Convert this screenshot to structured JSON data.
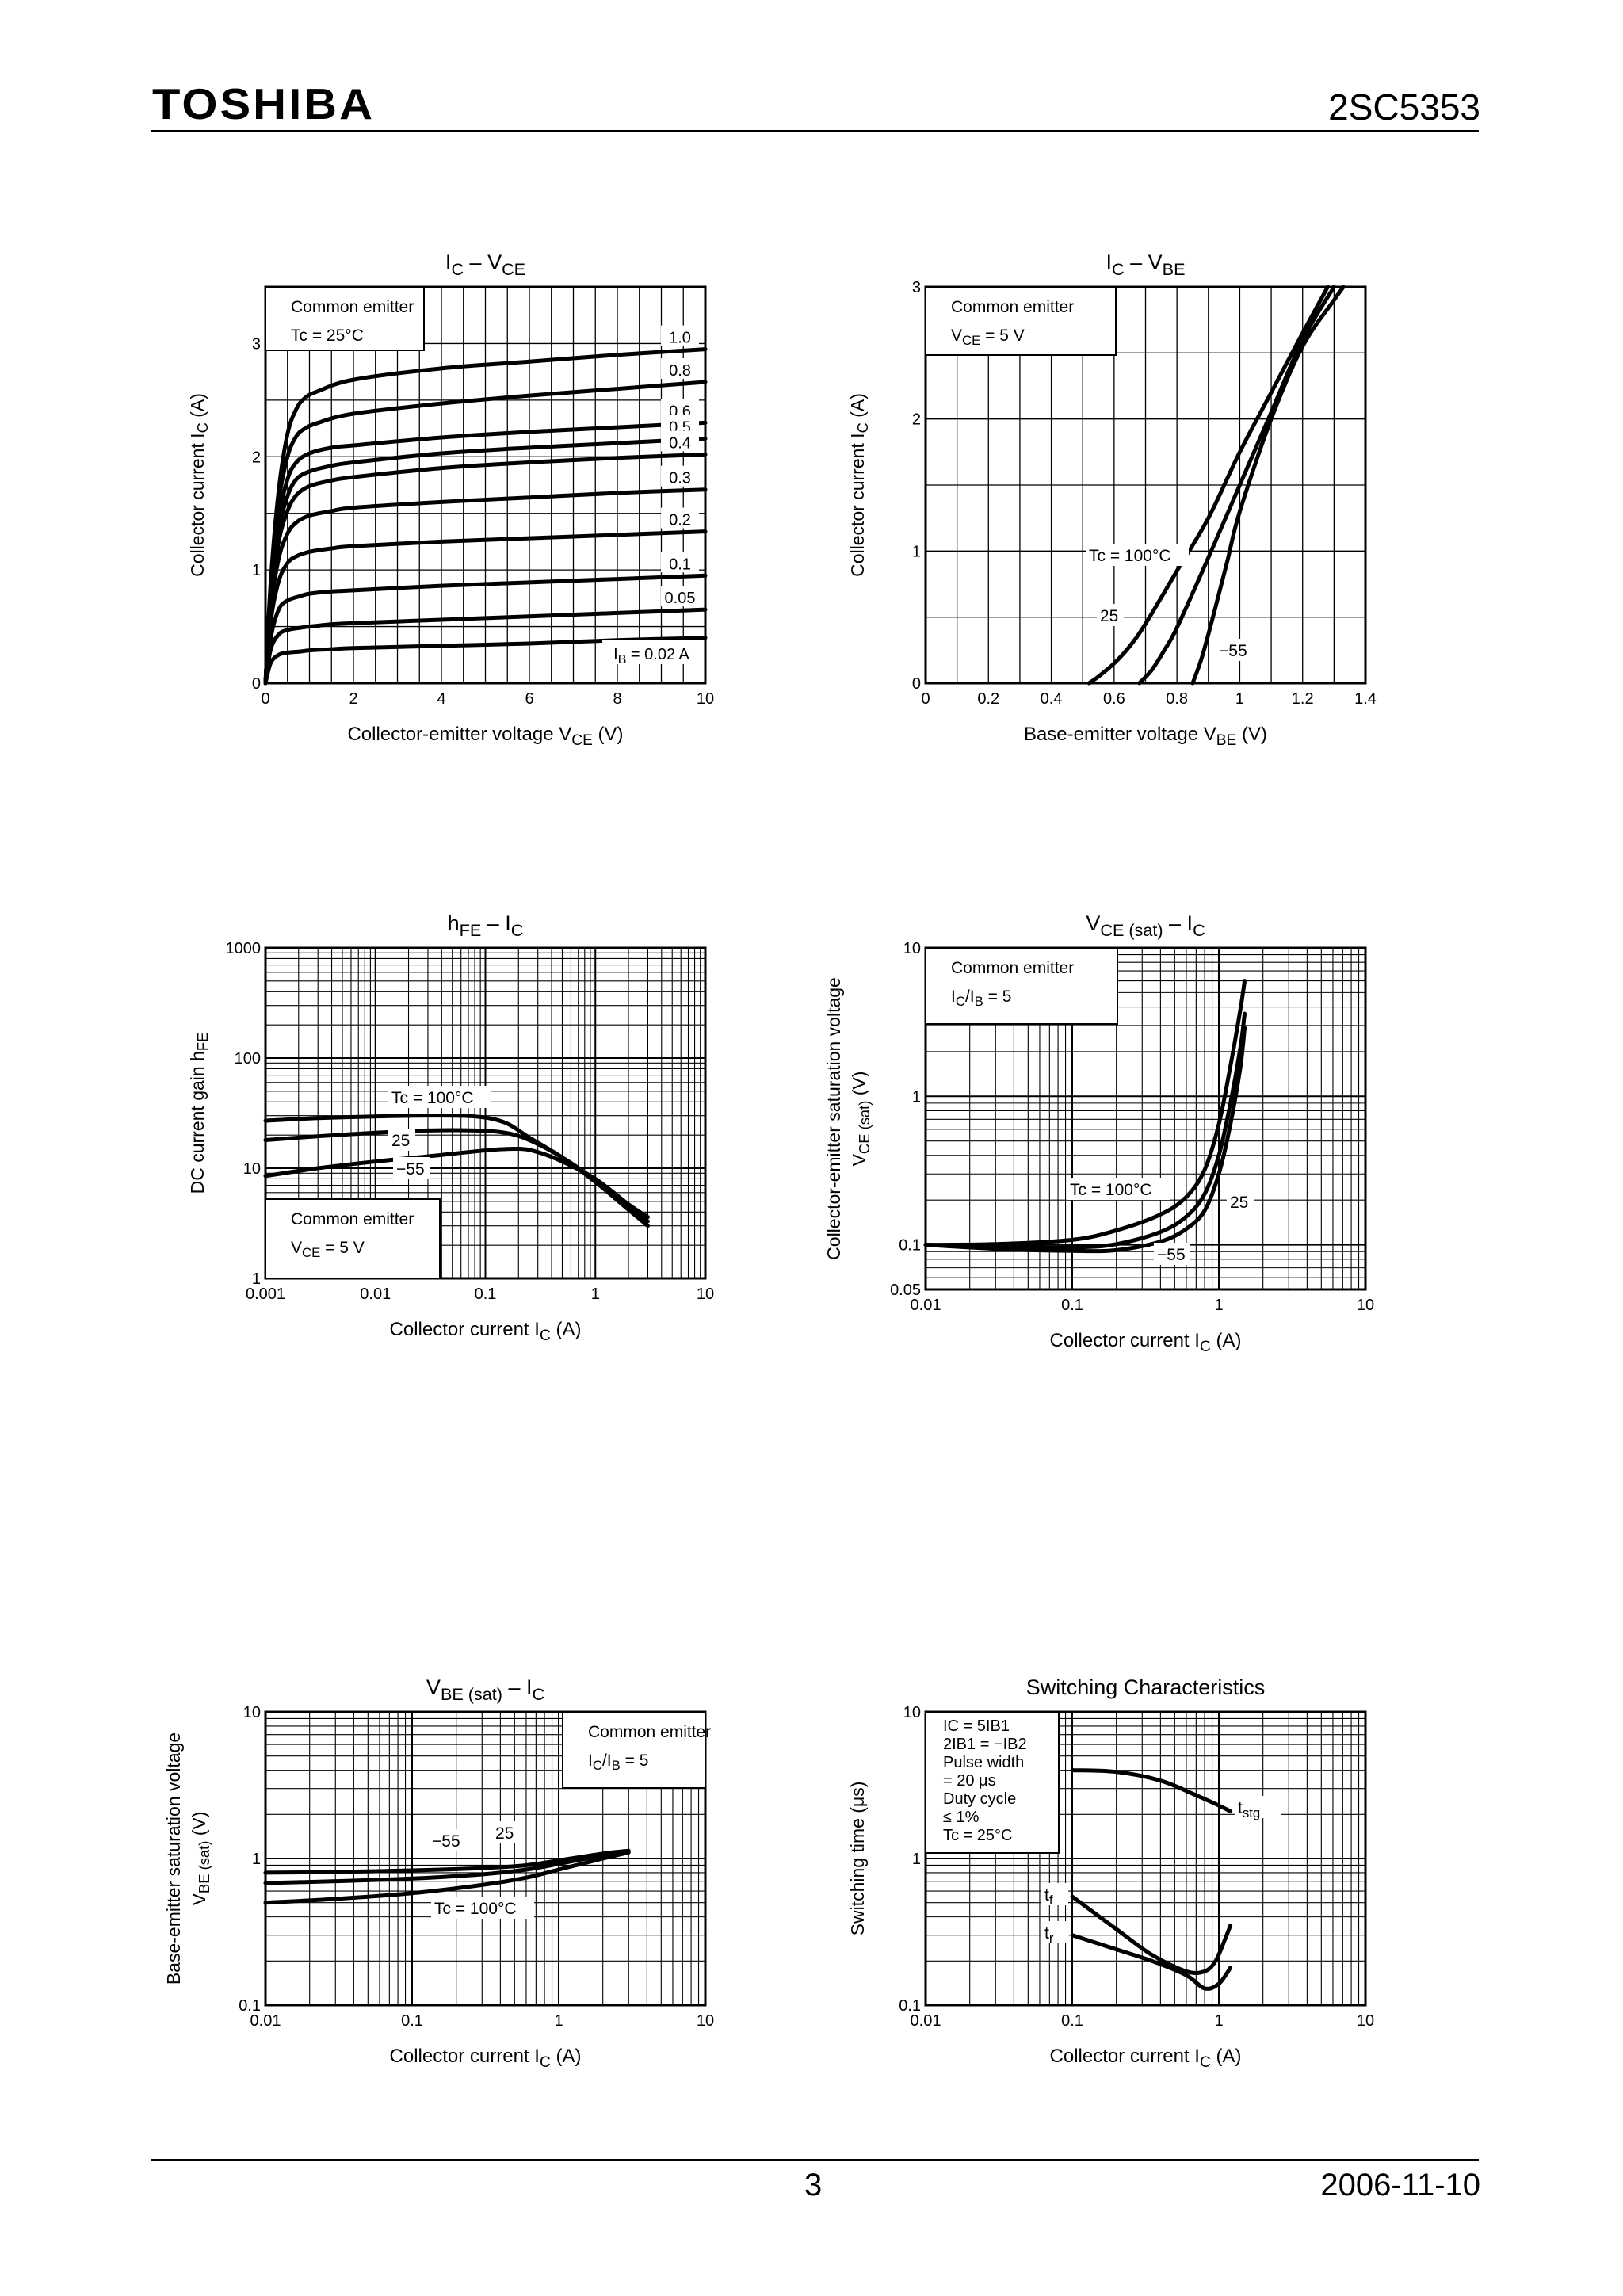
{
  "header": {
    "brand": "TOSHIBA",
    "part_number": "2SC5353"
  },
  "footer": {
    "page": "3",
    "date": "2006-11-10"
  },
  "chart_data": [
    {
      "id": "ic-vce",
      "type": "line",
      "title": "IC – VCE",
      "title_main": "I",
      "title_sub1": "C",
      "title_mid": " – V",
      "title_sub2": "CE",
      "xlabel": "Collector-emitter voltage",
      "xlabel_sym": "V",
      "xlabel_sub": "CE",
      "xlabel_unit": "(V)",
      "ylabel": "Collector current",
      "ylabel_sym": "I",
      "ylabel_sub": "C",
      "ylabel_unit": "(A)",
      "xscale": "linear",
      "yscale": "linear",
      "xlim": [
        0,
        10
      ],
      "ylim": [
        0,
        3.5
      ],
      "xticks": [
        0,
        2,
        4,
        6,
        8,
        10
      ],
      "yticks": [
        0,
        1,
        2,
        3
      ],
      "info": [
        "Common emitter",
        "Tc = 25°C"
      ],
      "series": [
        {
          "name": "1.0",
          "x": [
            0,
            0.12,
            0.3,
            0.5,
            0.7,
            0.9,
            1.2,
            2,
            4,
            6,
            8,
            10
          ],
          "y": [
            0,
            0.9,
            1.7,
            2.2,
            2.42,
            2.52,
            2.58,
            2.68,
            2.78,
            2.84,
            2.9,
            2.95
          ]
        },
        {
          "name": "0.8",
          "x": [
            0,
            0.12,
            0.3,
            0.5,
            0.7,
            0.9,
            1.2,
            2,
            4,
            6,
            8,
            10
          ],
          "y": [
            0,
            0.85,
            1.6,
            2.0,
            2.18,
            2.25,
            2.3,
            2.38,
            2.47,
            2.54,
            2.6,
            2.66
          ]
        },
        {
          "name": "0.6",
          "x": [
            0,
            0.12,
            0.3,
            0.5,
            0.7,
            1.0,
            1.5,
            2,
            4,
            6,
            8,
            10
          ],
          "y": [
            0,
            0.8,
            1.45,
            1.8,
            1.95,
            2.03,
            2.08,
            2.1,
            2.17,
            2.22,
            2.26,
            2.3
          ]
        },
        {
          "name": "0.5",
          "x": [
            0,
            0.12,
            0.3,
            0.5,
            0.7,
            1.0,
            1.5,
            2,
            4,
            6,
            8,
            10
          ],
          "y": [
            0,
            0.78,
            1.35,
            1.65,
            1.8,
            1.87,
            1.92,
            1.95,
            2.03,
            2.08,
            2.12,
            2.16
          ]
        },
        {
          "name": "0.4",
          "x": [
            0,
            0.12,
            0.3,
            0.5,
            0.7,
            1.0,
            1.5,
            2,
            4,
            6,
            8,
            10
          ],
          "y": [
            0,
            0.72,
            1.25,
            1.52,
            1.66,
            1.74,
            1.79,
            1.82,
            1.9,
            1.95,
            1.99,
            2.02
          ]
        },
        {
          "name": "0.3",
          "x": [
            0,
            0.12,
            0.3,
            0.5,
            0.7,
            1.0,
            1.5,
            2,
            4,
            6,
            8,
            10
          ],
          "y": [
            0,
            0.65,
            1.1,
            1.32,
            1.42,
            1.48,
            1.52,
            1.55,
            1.6,
            1.64,
            1.68,
            1.71
          ]
        },
        {
          "name": "0.2",
          "x": [
            0,
            0.12,
            0.3,
            0.5,
            0.7,
            1.0,
            1.5,
            2,
            4,
            6,
            8,
            10
          ],
          "y": [
            0,
            0.55,
            0.9,
            1.06,
            1.12,
            1.16,
            1.19,
            1.21,
            1.25,
            1.28,
            1.31,
            1.34
          ]
        },
        {
          "name": "0.1",
          "x": [
            0,
            0.12,
            0.3,
            0.5,
            0.8,
            1.0,
            1.5,
            2,
            4,
            6,
            8,
            10
          ],
          "y": [
            0,
            0.4,
            0.65,
            0.73,
            0.77,
            0.79,
            0.81,
            0.82,
            0.86,
            0.89,
            0.92,
            0.95
          ]
        },
        {
          "name": "0.05",
          "x": [
            0,
            0.12,
            0.3,
            0.5,
            0.8,
            1.0,
            1.5,
            2,
            4,
            6,
            8,
            10
          ],
          "y": [
            0,
            0.3,
            0.43,
            0.47,
            0.49,
            0.5,
            0.52,
            0.53,
            0.56,
            0.59,
            0.62,
            0.65
          ]
        },
        {
          "name": "IB = 0.02 A",
          "x": [
            0,
            0.12,
            0.3,
            0.5,
            0.8,
            1.0,
            1.5,
            2,
            4,
            6,
            8,
            10
          ],
          "y": [
            0,
            0.18,
            0.25,
            0.27,
            0.28,
            0.29,
            0.3,
            0.31,
            0.33,
            0.35,
            0.38,
            0.4
          ]
        }
      ],
      "curve_labels": [
        "1.0",
        "0.8",
        "0.6",
        "0.5",
        "0.4",
        "0.3",
        "0.2",
        "0.1",
        "0.05"
      ],
      "ib_label_main": "I",
      "ib_label_sub": "B",
      "ib_label_rest": " = 0.02 A"
    },
    {
      "id": "ic-vbe",
      "type": "line",
      "title": "IC – VBE",
      "title_main": "I",
      "title_sub1": "C",
      "title_mid": " – V",
      "title_sub2": "BE",
      "xlabel": "Base-emitter voltage",
      "xlabel_sym": "V",
      "xlabel_sub": "BE",
      "xlabel_unit": "(V)",
      "ylabel": "Collector current",
      "ylabel_sym": "I",
      "ylabel_sub": "C",
      "ylabel_unit": "(A)",
      "xscale": "linear",
      "yscale": "linear",
      "xlim": [
        0,
        1.4
      ],
      "ylim": [
        0,
        3
      ],
      "xticks": [
        0,
        0.2,
        0.4,
        0.6,
        0.8,
        1.0,
        1.2,
        1.4
      ],
      "yticks": [
        0,
        1,
        2,
        3
      ],
      "info": [
        "Common emitter",
        "VCE = 5 V"
      ],
      "info2_main": "V",
      "info2_sub": "CE",
      "info2_rest": " = 5 V",
      "series": [
        {
          "name": "Tc = 100°C",
          "x": [
            0.52,
            0.55,
            0.6,
            0.65,
            0.7,
            0.8,
            0.9,
            1.0,
            1.1,
            1.2,
            1.28
          ],
          "y": [
            0,
            0.05,
            0.15,
            0.28,
            0.45,
            0.85,
            1.25,
            1.75,
            2.2,
            2.65,
            3.0
          ]
        },
        {
          "name": "25",
          "x": [
            0.68,
            0.72,
            0.76,
            0.8,
            0.9,
            1.0,
            1.1,
            1.2,
            1.3
          ],
          "y": [
            0,
            0.1,
            0.25,
            0.42,
            0.95,
            1.5,
            2.05,
            2.6,
            3.0
          ]
        },
        {
          "name": "−55",
          "x": [
            0.85,
            0.88,
            0.92,
            0.96,
            1.0,
            1.1,
            1.2,
            1.3,
            1.33
          ],
          "y": [
            0,
            0.2,
            0.55,
            0.92,
            1.3,
            2.0,
            2.55,
            2.9,
            3.0
          ]
        }
      ],
      "curve_labels": [
        "Tc = 100°C",
        "25",
        "−55"
      ]
    },
    {
      "id": "hfe-ic",
      "type": "line",
      "title": "hFE – IC",
      "title_main": "h",
      "title_sub1": "FE",
      "title_mid": " – I",
      "title_sub2": "C",
      "xlabel": "Collector current",
      "xlabel_sym": "I",
      "xlabel_sub": "C",
      "xlabel_unit": "(A)",
      "ylabel": "DC current gain",
      "ylabel_sym": "h",
      "ylabel_sub": "FE",
      "ylabel_unit": "",
      "xscale": "log",
      "yscale": "log",
      "xlim": [
        0.001,
        10
      ],
      "ylim": [
        1,
        1000
      ],
      "xticks": [
        0.001,
        0.01,
        0.1,
        1,
        10
      ],
      "yticks": [
        1,
        10,
        100,
        1000
      ],
      "xtick_labels": [
        "0.001",
        "0.01",
        "0.1",
        "1",
        "10"
      ],
      "ytick_labels": [
        "1",
        "10",
        "100",
        "1000"
      ],
      "info": [
        "Common emitter",
        "VCE = 5 V"
      ],
      "info2_main": "V",
      "info2_sub": "CE",
      "info2_rest": " = 5 V",
      "series": [
        {
          "name": "Tc = 100°C",
          "x": [
            0.001,
            0.003,
            0.01,
            0.03,
            0.08,
            0.15,
            0.25,
            0.5,
            1,
            2,
            3
          ],
          "y": [
            27,
            28.5,
            29.5,
            30,
            29.5,
            26,
            19,
            12.5,
            7.5,
            4.2,
            3.0
          ]
        },
        {
          "name": "25",
          "x": [
            0.001,
            0.003,
            0.01,
            0.03,
            0.08,
            0.15,
            0.25,
            0.5,
            1,
            2,
            3
          ],
          "y": [
            18,
            19.5,
            21,
            22,
            22,
            21,
            18,
            12.5,
            7.8,
            4.4,
            3.3
          ]
        },
        {
          "name": "−55",
          "x": [
            0.001,
            0.003,
            0.01,
            0.03,
            0.1,
            0.2,
            0.3,
            0.5,
            1,
            2,
            3
          ],
          "y": [
            8.5,
            10,
            11.5,
            12.8,
            14.5,
            15,
            14,
            11.5,
            8,
            4.7,
            3.6
          ]
        }
      ],
      "curve_labels": [
        "Tc = 100°C",
        "25",
        "−55"
      ]
    },
    {
      "id": "vcesat-ic",
      "type": "line",
      "title": "VCE (sat) – IC",
      "title_main": "V",
      "title_sub1": "CE (sat)",
      "title_mid": " – I",
      "title_sub2": "C",
      "xlabel": "Collector current",
      "xlabel_sym": "I",
      "xlabel_sub": "C",
      "xlabel_unit": "(A)",
      "ylabel": "Collector-emitter saturation voltage",
      "ylabel_sym": "V",
      "ylabel_sub": "CE (sat)",
      "ylabel_unit": "(V)",
      "xscale": "log",
      "yscale": "log",
      "xlim": [
        0.01,
        10
      ],
      "ylim": [
        0.05,
        10
      ],
      "xticks": [
        0.01,
        0.1,
        1,
        10
      ],
      "yticks": [
        0.05,
        0.1,
        1,
        10
      ],
      "xtick_labels": [
        "0.01",
        "0.1",
        "1",
        "10"
      ],
      "ytick_labels": [
        "0.05",
        "0.1",
        "1",
        "10"
      ],
      "info": [
        "Common emitter",
        "IC/IB = 5"
      ],
      "info2_main": "I",
      "info2_sub": "C",
      "info2_rest": "/I",
      "info2_sub2": "B",
      "info2_rest2": " = 5",
      "series": [
        {
          "name": "Tc = 100°C",
          "x": [
            0.01,
            0.03,
            0.1,
            0.2,
            0.4,
            0.6,
            0.8,
            1.0,
            1.2,
            1.4,
            1.5
          ],
          "y": [
            0.1,
            0.101,
            0.108,
            0.125,
            0.16,
            0.21,
            0.32,
            0.65,
            1.6,
            3.8,
            6.0
          ]
        },
        {
          "name": "25",
          "x": [
            0.01,
            0.03,
            0.1,
            0.2,
            0.4,
            0.6,
            0.8,
            1.0,
            1.2,
            1.4,
            1.5
          ],
          "y": [
            0.1,
            0.097,
            0.096,
            0.101,
            0.122,
            0.155,
            0.22,
            0.4,
            0.9,
            2.1,
            3.6
          ]
        },
        {
          "name": "−55",
          "x": [
            0.01,
            0.03,
            0.1,
            0.2,
            0.4,
            0.6,
            0.8,
            1.0,
            1.2,
            1.4,
            1.5
          ],
          "y": [
            0.1,
            0.094,
            0.091,
            0.092,
            0.105,
            0.128,
            0.17,
            0.3,
            0.65,
            1.55,
            2.9
          ]
        }
      ],
      "curve_labels": [
        "Tc = 100°C",
        "25",
        "−55"
      ]
    },
    {
      "id": "vbesat-ic",
      "type": "line",
      "title": "VBE (sat) – IC",
      "title_main": "V",
      "title_sub1": "BE (sat)",
      "title_mid": " – I",
      "title_sub2": "C",
      "xlabel": "Collector current",
      "xlabel_sym": "I",
      "xlabel_sub": "C",
      "xlabel_unit": "(A)",
      "ylabel": "Base-emitter saturation voltage",
      "ylabel_sym": "V",
      "ylabel_sub": "BE (sat)",
      "ylabel_unit": "(V)",
      "xscale": "log",
      "yscale": "log",
      "xlim": [
        0.01,
        10
      ],
      "ylim": [
        0.1,
        10
      ],
      "xticks": [
        0.01,
        0.1,
        1,
        10
      ],
      "yticks": [
        0.1,
        1,
        10
      ],
      "xtick_labels": [
        "0.01",
        "0.1",
        "1",
        "10"
      ],
      "ytick_labels": [
        "0.1",
        "1",
        "10"
      ],
      "info": [
        "Common emitter",
        "IC/IB = 5"
      ],
      "info2_main": "I",
      "info2_sub": "C",
      "info2_rest": "/I",
      "info2_sub2": "B",
      "info2_rest2": " = 5",
      "series": [
        {
          "name": "−55",
          "x": [
            0.01,
            0.03,
            0.1,
            0.3,
            0.6,
            1,
            2,
            3
          ],
          "y": [
            0.8,
            0.81,
            0.83,
            0.86,
            0.9,
            0.97,
            1.08,
            1.13
          ]
        },
        {
          "name": "25",
          "x": [
            0.01,
            0.03,
            0.1,
            0.3,
            0.6,
            1,
            2,
            3
          ],
          "y": [
            0.68,
            0.7,
            0.73,
            0.78,
            0.84,
            0.92,
            1.05,
            1.12
          ]
        },
        {
          "name": "Tc = 100°C",
          "x": [
            0.01,
            0.03,
            0.1,
            0.3,
            0.6,
            1,
            2,
            3
          ],
          "y": [
            0.5,
            0.53,
            0.58,
            0.66,
            0.74,
            0.84,
            1.0,
            1.1
          ]
        }
      ],
      "curve_labels": [
        "−55",
        "25",
        "Tc = 100°C"
      ]
    },
    {
      "id": "switching",
      "type": "line",
      "title": "Switching Characteristics",
      "xlabel": "Collector current",
      "xlabel_sym": "I",
      "xlabel_sub": "C",
      "xlabel_unit": "(A)",
      "ylabel": "Switching time",
      "ylabel_sym": "",
      "ylabel_sub": "",
      "ylabel_unit": "(μs)",
      "xscale": "log",
      "yscale": "log",
      "xlim": [
        0.01,
        10
      ],
      "ylim": [
        0.1,
        10
      ],
      "xticks": [
        0.01,
        0.1,
        1,
        10
      ],
      "yticks": [
        0.1,
        1,
        10
      ],
      "xtick_labels": [
        "0.01",
        "0.1",
        "1",
        "10"
      ],
      "ytick_labels": [
        "0.1",
        "1",
        "10"
      ],
      "info": [
        "IC = 5IB1",
        "2IB1 = −IB2",
        "Pulse width",
        "= 20 μs",
        "Duty cycle",
        "≤ 1%",
        "Tc = 25°C"
      ],
      "series": [
        {
          "name": "tstg",
          "x": [
            0.1,
            0.2,
            0.4,
            0.7,
            1.0,
            1.2
          ],
          "y": [
            4.0,
            3.9,
            3.4,
            2.7,
            2.3,
            2.1
          ]
        },
        {
          "name": "tf",
          "x": [
            0.1,
            0.2,
            0.35,
            0.6,
            0.8,
            0.95,
            1.1,
            1.2
          ],
          "y": [
            0.55,
            0.33,
            0.22,
            0.17,
            0.17,
            0.2,
            0.28,
            0.35
          ]
        },
        {
          "name": "tr",
          "x": [
            0.1,
            0.2,
            0.35,
            0.6,
            0.8,
            1.0,
            1.2
          ],
          "y": [
            0.3,
            0.24,
            0.2,
            0.16,
            0.13,
            0.14,
            0.18
          ]
        }
      ],
      "curve_labels": [
        "tstg",
        "tf",
        "tr"
      ]
    }
  ]
}
